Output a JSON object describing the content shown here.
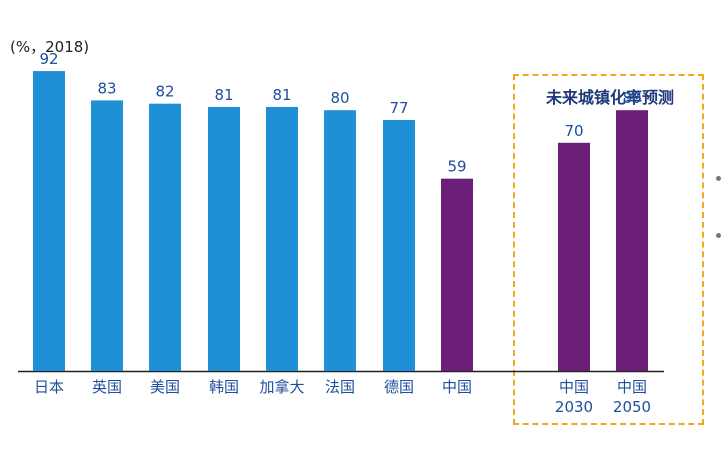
{
  "unit_label": "(%，2018)",
  "forecast_title": "未来城镇化率预测",
  "colors": {
    "bar_blue": "#1f8fd6",
    "bar_purple": "#6b1f78",
    "label_blue": "#1f4e9c",
    "box_orange": "#f0a81c"
  },
  "chart_data": {
    "type": "bar",
    "title": "",
    "xlabel": "",
    "ylabel": "",
    "ylim": [
      0,
      100
    ],
    "grid": false,
    "categories": [
      {
        "label": [
          "日本"
        ],
        "value": 92,
        "highlight": false
      },
      {
        "label": [
          "英国"
        ],
        "value": 83,
        "highlight": false
      },
      {
        "label": [
          "美国"
        ],
        "value": 82,
        "highlight": false
      },
      {
        "label": [
          "韩国"
        ],
        "value": 81,
        "highlight": false
      },
      {
        "label": [
          "加拿大"
        ],
        "value": 81,
        "highlight": false
      },
      {
        "label": [
          "法国"
        ],
        "value": 80,
        "highlight": false
      },
      {
        "label": [
          "德国"
        ],
        "value": 77,
        "highlight": false
      },
      {
        "label": [
          "中国"
        ],
        "value": 59,
        "highlight": true
      },
      {
        "label": [
          "中国",
          "2030"
        ],
        "value": 70,
        "highlight": true,
        "forecast": true
      },
      {
        "label": [
          "中国",
          "2050"
        ],
        "value": 80,
        "highlight": true,
        "forecast": true
      }
    ]
  }
}
